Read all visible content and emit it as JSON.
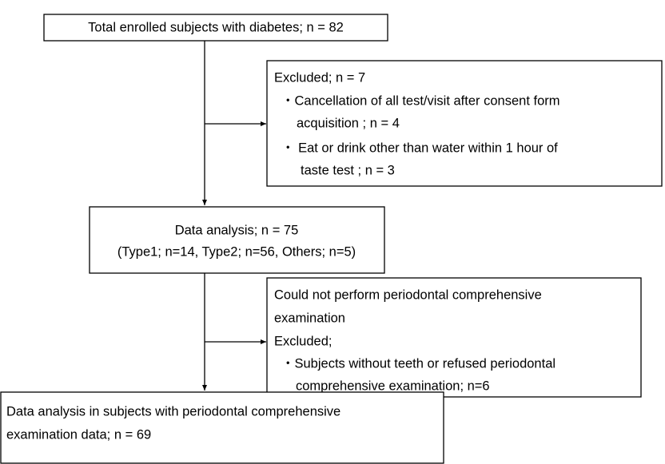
{
  "nodes": [
    {
      "lines": [
        "Total enrolled subjects with diabetes; n = 82"
      ]
    },
    {
      "lines": [
        "Excluded; n = 7",
        "・Cancellation of all test/visit after consent form",
        "acquisition ; n = 4",
        "・ Eat or drink other than water within 1 hour of",
        "taste test ; n = 3"
      ]
    },
    {
      "lines": [
        "Data analysis; n = 75",
        "(Type1; n=14, Type2; n=56, Others; n=5)"
      ]
    },
    {
      "lines": [
        "Could not perform periodontal comprehensive",
        "examination",
        "Excluded;",
        "・Subjects without teeth or refused periodontal",
        "comprehensive examination; n=6"
      ]
    },
    {
      "lines": [
        "Data analysis in subjects with periodontal comprehensive",
        "examination data; n = 69"
      ]
    }
  ]
}
